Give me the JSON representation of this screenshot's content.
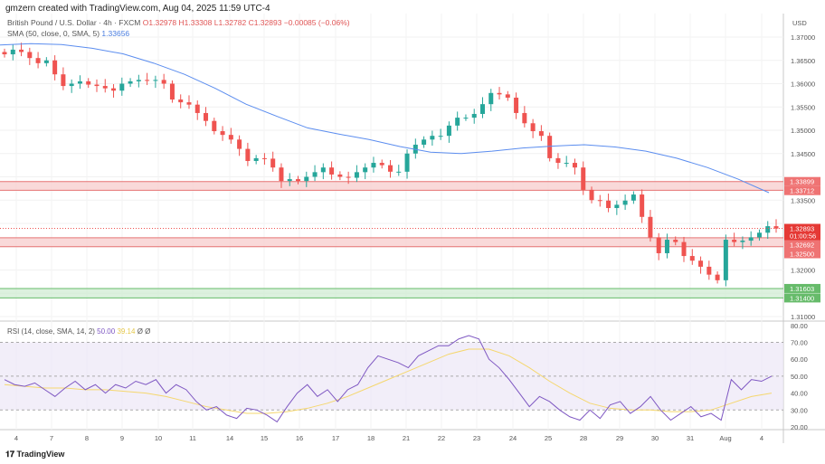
{
  "header": {
    "credit": "gmzern created with TradingView.com, Aug 04, 2025 11:59 UTC-4",
    "symbol": "British Pound / U.S. Dollar · 4h · FXCM",
    "open": "O1.32978",
    "high": "H1.33308",
    "low": "L1.32782",
    "close": "C1.32893",
    "change": "−0.00085 (−0.06%)",
    "sma_label": "SMA (50, close, 0, SMA, 5)",
    "sma_value": "1.33656"
  },
  "rsi_header": {
    "label": "RSI (14, close, SMA, 14, 2)",
    "rsi_value": "50.00",
    "signal_value": "39.14",
    "extra1": "Ø",
    "extra2": "Ø"
  },
  "logo": "TradingView",
  "colors": {
    "up": "#26a69a",
    "down": "#ef5350",
    "sma": "#5b8def",
    "rsi": "#7e57c2",
    "rsi_signal": "#f5d76e",
    "zone_red": "#f7c9c9",
    "zone_green": "#cdebd0"
  },
  "chart_data": [
    {
      "type": "candlestick",
      "currency": "USD",
      "ylim": [
        1.305,
        1.372
      ],
      "y_ticks": [
        "1.37000",
        "1.36500",
        "1.36000",
        "1.35500",
        "1.35000",
        "1.34500",
        "1.34000",
        "1.33500",
        "1.33000",
        "1.32500",
        "1.32000",
        "1.31500",
        "1.31000"
      ],
      "x_ticks": [
        "4",
        "7",
        "8",
        "9",
        "10",
        "11",
        "14",
        "15",
        "16",
        "17",
        "18",
        "21",
        "22",
        "23",
        "24",
        "25",
        "28",
        "29",
        "30",
        "31",
        "Aug",
        "4"
      ],
      "closes": [
        1.3663,
        1.3673,
        1.3668,
        1.3655,
        1.3644,
        1.365,
        1.362,
        1.3595,
        1.36,
        1.3605,
        1.3598,
        1.3595,
        1.359,
        1.3585,
        1.36,
        1.3605,
        1.3608,
        1.3606,
        1.3608,
        1.36,
        1.3566,
        1.356,
        1.3555,
        1.3537,
        1.352,
        1.3498,
        1.349,
        1.348,
        1.346,
        1.3434,
        1.344,
        1.3439,
        1.342,
        1.3391,
        1.3395,
        1.3391,
        1.34,
        1.341,
        1.342,
        1.3405,
        1.34,
        1.3398,
        1.341,
        1.342,
        1.343,
        1.3425,
        1.3411,
        1.3411,
        1.345,
        1.3469,
        1.348,
        1.3488,
        1.3488,
        1.351,
        1.3527,
        1.3527,
        1.3535,
        1.3556,
        1.358,
        1.3577,
        1.357,
        1.3537,
        1.3515,
        1.3498,
        1.3488,
        1.344,
        1.343,
        1.343,
        1.342,
        1.3372,
        1.335,
        1.3349,
        1.3333,
        1.334,
        1.3349,
        1.3362,
        1.3314,
        1.327,
        1.3236,
        1.3265,
        1.326,
        1.323,
        1.322,
        1.3207,
        1.319,
        1.3178,
        1.3265,
        1.326,
        1.3263,
        1.327,
        1.328,
        1.3294,
        1.3289
      ],
      "sma": [
        1.3683,
        1.3686,
        1.3684,
        1.3676,
        1.3664,
        1.3644,
        1.362,
        1.359,
        1.3556,
        1.353,
        1.3505,
        1.3492,
        1.348,
        1.3465,
        1.3453,
        1.345,
        1.3455,
        1.3462,
        1.3466,
        1.3469,
        1.3464,
        1.3455,
        1.344,
        1.342,
        1.3395,
        1.3366
      ],
      "levels": {
        "last": {
          "value": "1.32893",
          "countdown": "01:00:56"
        },
        "zones": [
          {
            "top": "1.33899",
            "bottom": "1.33712",
            "color": "red"
          },
          {
            "top": "1.32692",
            "bottom": "1.32500",
            "color": "red"
          },
          {
            "top": "1.31603",
            "bottom": "1.31400",
            "color": "green"
          }
        ]
      }
    },
    {
      "type": "line",
      "name": "RSI",
      "ylim": [
        15,
        82
      ],
      "y_ticks": [
        "80.00",
        "70.00",
        "60.00",
        "50.00",
        "40.00",
        "30.00",
        "20.00"
      ],
      "band": [
        30,
        70
      ],
      "rsi": [
        48,
        45,
        44,
        46,
        42,
        38,
        43,
        47,
        42,
        45,
        40,
        45,
        43,
        47,
        45,
        48,
        40,
        45,
        42,
        35,
        30,
        32,
        27,
        25,
        31,
        30,
        27,
        23,
        32,
        40,
        45,
        38,
        42,
        35,
        42,
        45,
        55,
        62,
        60,
        58,
        55,
        62,
        65,
        68,
        68,
        72,
        74,
        72,
        60,
        55,
        48,
        40,
        32,
        38,
        35,
        30,
        26,
        24,
        30,
        25,
        33,
        35,
        28,
        32,
        38,
        30,
        24,
        28,
        32,
        26,
        28,
        24,
        48,
        42,
        48,
        47,
        50
      ],
      "signal": [
        45,
        44,
        43,
        43,
        42,
        42,
        41,
        40,
        38,
        35,
        32,
        30,
        28,
        28,
        29,
        31,
        34,
        38,
        43,
        48,
        53,
        58,
        63,
        66,
        66,
        62,
        55,
        47,
        40,
        34,
        31,
        30,
        30,
        29,
        29,
        30,
        34,
        38,
        40
      ]
    }
  ]
}
